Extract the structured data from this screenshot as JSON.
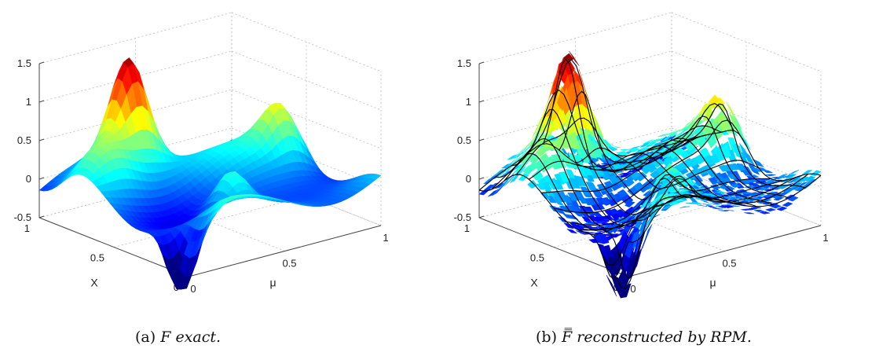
{
  "figures": [
    {
      "id": "a",
      "caption_label": "(a)",
      "caption_math": "F",
      "caption_text": "exact."
    },
    {
      "id": "b",
      "caption_label": "(b)",
      "caption_math": "F̿",
      "caption_text": "reconstructed by RPM."
    }
  ],
  "chart_data": [
    {
      "type": "surface",
      "title": "",
      "xlabel": "μ",
      "ylabel": "X",
      "zlabel": "",
      "xlim": [
        0,
        1
      ],
      "ylim": [
        0,
        1
      ],
      "zlim": [
        -0.5,
        1.5
      ],
      "x_ticks": [
        "0",
        "0.5",
        "1"
      ],
      "y_ticks": [
        "0",
        "0.5",
        "1"
      ],
      "z_ticks": [
        "-0.5",
        "0",
        "0.5",
        "1",
        "1.5"
      ],
      "colormap": "jet",
      "peak_value": 1.5,
      "min_value": -0.5,
      "grid": true,
      "wireframe_overlay": false
    },
    {
      "type": "surface",
      "title": "",
      "xlabel": "μ",
      "ylabel": "X",
      "zlabel": "",
      "xlim": [
        0,
        1
      ],
      "ylim": [
        0,
        1
      ],
      "zlim": [
        -0.5,
        1.5
      ],
      "x_ticks": [
        "0",
        "0.5",
        "1"
      ],
      "y_ticks": [
        "0",
        "0.5",
        "1"
      ],
      "z_ticks": [
        "-0.5",
        "0",
        "0.5",
        "1",
        "1.5"
      ],
      "colormap": "jet",
      "peak_value": 1.5,
      "min_value": -0.5,
      "grid": true,
      "wireframe_overlay": true,
      "wireframe_color": "#000000"
    }
  ]
}
